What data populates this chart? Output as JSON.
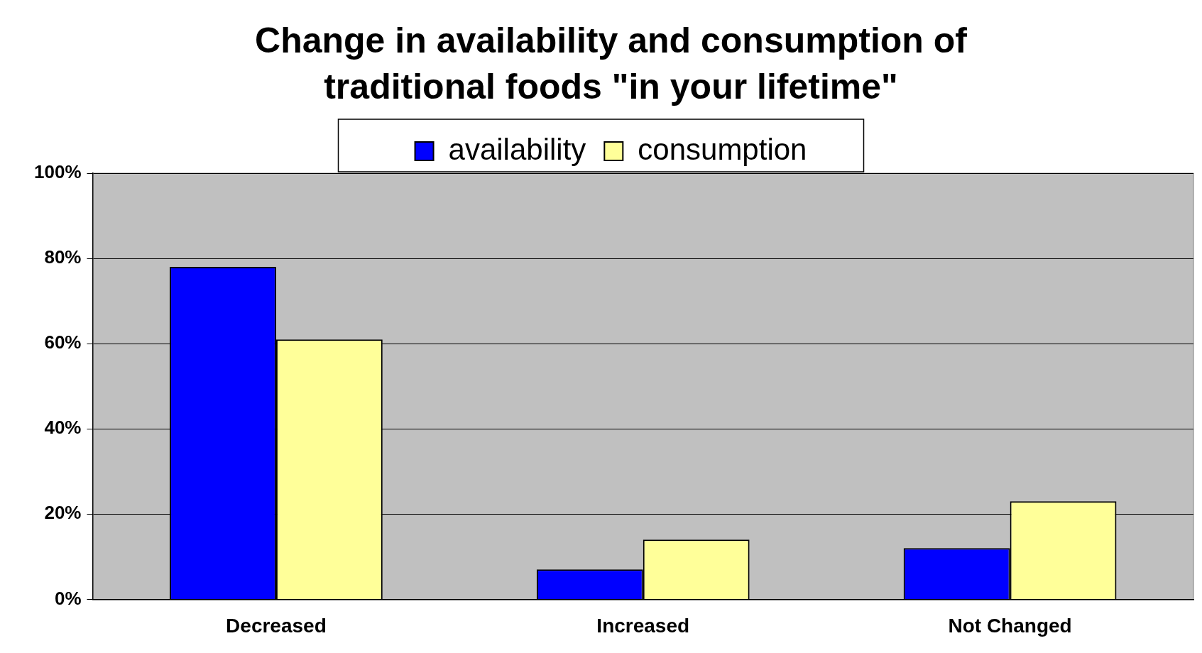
{
  "chart_data": {
    "type": "bar",
    "title": "Change in availability and consumption of traditional foods \"in your lifetime\"",
    "categories": [
      "Decreased",
      "Increased",
      "Not Changed"
    ],
    "series": [
      {
        "name": "availability",
        "color": "#0000ff",
        "values": [
          78,
          7,
          12
        ]
      },
      {
        "name": "consumption",
        "color": "#ffff99",
        "values": [
          61,
          14,
          23
        ]
      }
    ],
    "ylim": [
      0,
      100
    ],
    "yticks": [
      {
        "value": 0,
        "label": "0%"
      },
      {
        "value": 20,
        "label": "20%"
      },
      {
        "value": 40,
        "label": "40%"
      },
      {
        "value": 60,
        "label": "60%"
      },
      {
        "value": 80,
        "label": "80%"
      },
      {
        "value": 100,
        "label": "100%"
      }
    ],
    "grid": "y",
    "legend": "top"
  }
}
